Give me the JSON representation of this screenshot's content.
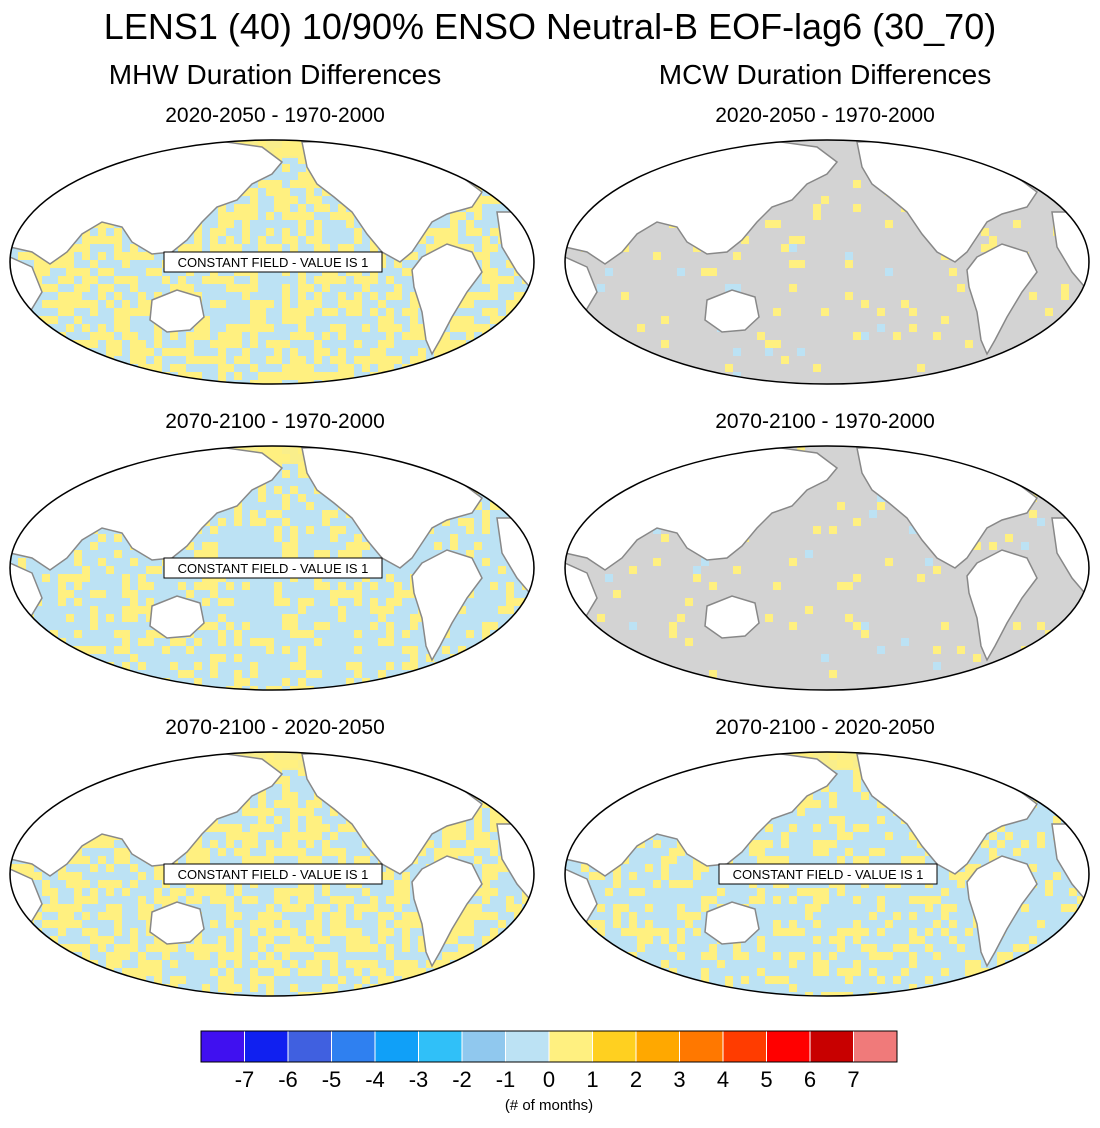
{
  "figure": {
    "title": "LENS1 (40) 10/90% ENSO Neutral-B EOF-lag6 (30_70)",
    "columns": [
      {
        "title": "MHW Duration Differences"
      },
      {
        "title": "MCW Duration Differences"
      }
    ],
    "panels": [
      {
        "title": "2020-2050 - 1970-2000",
        "fill": "mixed-yellow",
        "label": "CONSTANT FIELD - VALUE IS 1"
      },
      {
        "title": "2020-2050 - 1970-2000",
        "fill": "gray",
        "label": ""
      },
      {
        "title": "2070-2100 - 1970-2000",
        "fill": "mixed-blue",
        "label": "CONSTANT FIELD - VALUE IS 1"
      },
      {
        "title": "2070-2100 - 1970-2000",
        "fill": "gray",
        "label": ""
      },
      {
        "title": "2070-2100 - 2020-2050",
        "fill": "mixed-yellow",
        "label": "CONSTANT FIELD - VALUE IS 1"
      },
      {
        "title": "2070-2100 - 2020-2050",
        "fill": "mixed-blue",
        "label": "CONSTANT FIELD - VALUE IS 1"
      }
    ],
    "colorbar": {
      "colors": [
        "#4010f0",
        "#1020f0",
        "#4060e0",
        "#2f80f0",
        "#10a0f8",
        "#30c0f8",
        "#90c8ee",
        "#bce2f4",
        "#fff080",
        "#ffd020",
        "#ffa800",
        "#ff7800",
        "#ff3c00",
        "#ff0000",
        "#c80000",
        "#f07a7a"
      ],
      "labels": [
        "-7",
        "-6",
        "-5",
        "-4",
        "-3",
        "-2",
        "-1",
        "0",
        "1",
        "2",
        "3",
        "4",
        "5",
        "6",
        "7"
      ],
      "unit": "(# of months)"
    },
    "legend_colors": {
      "light_blue": "#bce2f4",
      "pale_yellow": "#fff080",
      "gray": "#d3d3d3",
      "land": "#ffffff",
      "coast": "#888888"
    }
  }
}
